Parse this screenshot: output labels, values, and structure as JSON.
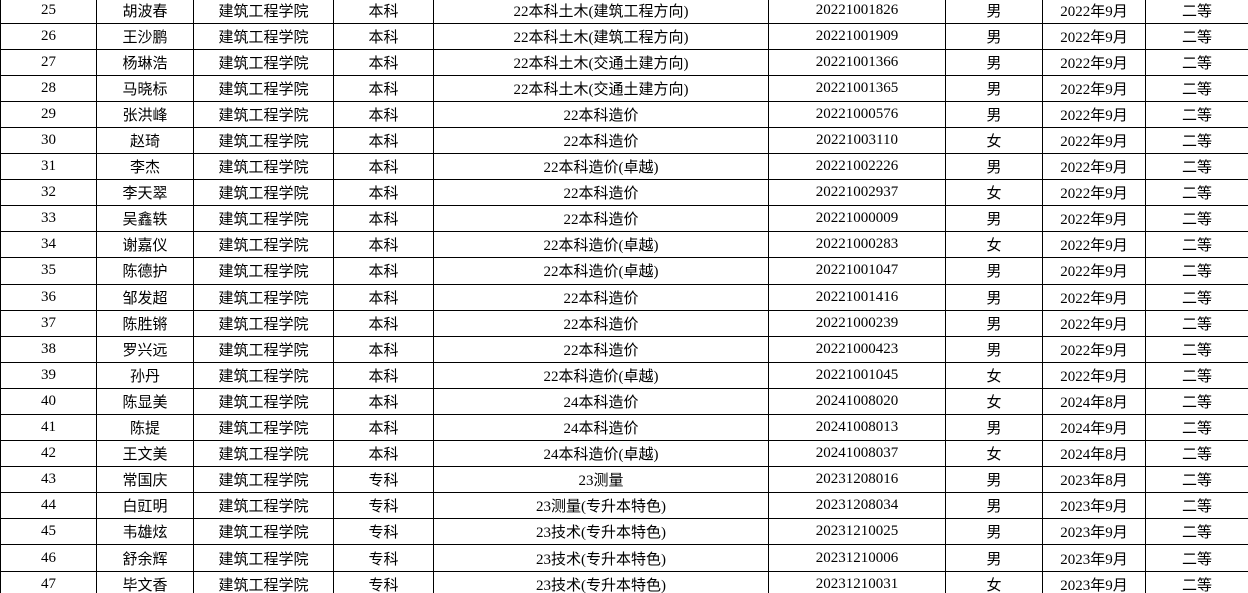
{
  "colors": {
    "border": "#000000",
    "background": "#ffffff",
    "text": "#000000"
  },
  "table": {
    "rows": [
      {
        "no": "25",
        "name": "胡波春",
        "college": "建筑工程学院",
        "level": "本科",
        "class": "22本科土木(建筑工程方向)",
        "student_id": "20221001826",
        "gender": "男",
        "enroll_date": "2022年9月",
        "award_level": "二等"
      },
      {
        "no": "26",
        "name": "王沙鹏",
        "college": "建筑工程学院",
        "level": "本科",
        "class": "22本科土木(建筑工程方向)",
        "student_id": "20221001909",
        "gender": "男",
        "enroll_date": "2022年9月",
        "award_level": "二等"
      },
      {
        "no": "27",
        "name": "杨琳浩",
        "college": "建筑工程学院",
        "level": "本科",
        "class": "22本科土木(交通土建方向)",
        "student_id": "20221001366",
        "gender": "男",
        "enroll_date": "2022年9月",
        "award_level": "二等"
      },
      {
        "no": "28",
        "name": "马晓标",
        "college": "建筑工程学院",
        "level": "本科",
        "class": "22本科土木(交通土建方向)",
        "student_id": "20221001365",
        "gender": "男",
        "enroll_date": "2022年9月",
        "award_level": "二等"
      },
      {
        "no": "29",
        "name": "张洪峰",
        "college": "建筑工程学院",
        "level": "本科",
        "class": "22本科造价",
        "student_id": "20221000576",
        "gender": "男",
        "enroll_date": "2022年9月",
        "award_level": "二等"
      },
      {
        "no": "30",
        "name": "赵琦",
        "college": "建筑工程学院",
        "level": "本科",
        "class": "22本科造价",
        "student_id": "20221003110",
        "gender": "女",
        "enroll_date": "2022年9月",
        "award_level": "二等"
      },
      {
        "no": "31",
        "name": "李杰",
        "college": "建筑工程学院",
        "level": "本科",
        "class": "22本科造价(卓越)",
        "student_id": "20221002226",
        "gender": "男",
        "enroll_date": "2022年9月",
        "award_level": "二等"
      },
      {
        "no": "32",
        "name": "李天翠",
        "college": "建筑工程学院",
        "level": "本科",
        "class": "22本科造价",
        "student_id": "20221002937",
        "gender": "女",
        "enroll_date": "2022年9月",
        "award_level": "二等"
      },
      {
        "no": "33",
        "name": "吴鑫轶",
        "college": "建筑工程学院",
        "level": "本科",
        "class": "22本科造价",
        "student_id": "20221000009",
        "gender": "男",
        "enroll_date": "2022年9月",
        "award_level": "二等"
      },
      {
        "no": "34",
        "name": "谢嘉仪",
        "college": "建筑工程学院",
        "level": "本科",
        "class": "22本科造价(卓越)",
        "student_id": "20221000283",
        "gender": "女",
        "enroll_date": "2022年9月",
        "award_level": "二等"
      },
      {
        "no": "35",
        "name": "陈德护",
        "college": "建筑工程学院",
        "level": "本科",
        "class": "22本科造价(卓越)",
        "student_id": "20221001047",
        "gender": "男",
        "enroll_date": "2022年9月",
        "award_level": "二等"
      },
      {
        "no": "36",
        "name": "邹发超",
        "college": "建筑工程学院",
        "level": "本科",
        "class": "22本科造价",
        "student_id": "20221001416",
        "gender": "男",
        "enroll_date": "2022年9月",
        "award_level": "二等"
      },
      {
        "no": "37",
        "name": "陈胜锵",
        "college": "建筑工程学院",
        "level": "本科",
        "class": "22本科造价",
        "student_id": "20221000239",
        "gender": "男",
        "enroll_date": "2022年9月",
        "award_level": "二等"
      },
      {
        "no": "38",
        "name": "罗兴远",
        "college": "建筑工程学院",
        "level": "本科",
        "class": "22本科造价",
        "student_id": "20221000423",
        "gender": "男",
        "enroll_date": "2022年9月",
        "award_level": "二等"
      },
      {
        "no": "39",
        "name": "孙丹",
        "college": "建筑工程学院",
        "level": "本科",
        "class": "22本科造价(卓越)",
        "student_id": "20221001045",
        "gender": "女",
        "enroll_date": "2022年9月",
        "award_level": "二等"
      },
      {
        "no": "40",
        "name": "陈显美",
        "college": "建筑工程学院",
        "level": "本科",
        "class": "24本科造价",
        "student_id": "20241008020",
        "gender": "女",
        "enroll_date": "2024年8月",
        "award_level": "二等"
      },
      {
        "no": "41",
        "name": "陈提",
        "college": "建筑工程学院",
        "level": "本科",
        "class": "24本科造价",
        "student_id": "20241008013",
        "gender": "男",
        "enroll_date": "2024年9月",
        "award_level": "二等"
      },
      {
        "no": "42",
        "name": "王文美",
        "college": "建筑工程学院",
        "level": "本科",
        "class": "24本科造价(卓越)",
        "student_id": "20241008037",
        "gender": "女",
        "enroll_date": "2024年8月",
        "award_level": "二等"
      },
      {
        "no": "43",
        "name": "常国庆",
        "college": "建筑工程学院",
        "level": "专科",
        "class": "23测量",
        "student_id": "20231208016",
        "gender": "男",
        "enroll_date": "2023年8月",
        "award_level": "二等"
      },
      {
        "no": "44",
        "name": "白豇明",
        "college": "建筑工程学院",
        "level": "专科",
        "class": "23测量(专升本特色)",
        "student_id": "20231208034",
        "gender": "男",
        "enroll_date": "2023年9月",
        "award_level": "二等"
      },
      {
        "no": "45",
        "name": "韦雄炫",
        "college": "建筑工程学院",
        "level": "专科",
        "class": "23技术(专升本特色)",
        "student_id": "20231210025",
        "gender": "男",
        "enroll_date": "2023年9月",
        "award_level": "二等"
      },
      {
        "no": "46",
        "name": "舒余辉",
        "college": "建筑工程学院",
        "level": "专科",
        "class": "23技术(专升本特色)",
        "student_id": "20231210006",
        "gender": "男",
        "enroll_date": "2023年9月",
        "award_level": "二等"
      },
      {
        "no": "47",
        "name": "毕文香",
        "college": "建筑工程学院",
        "level": "专科",
        "class": "23技术(专升本特色)",
        "student_id": "20231210031",
        "gender": "女",
        "enroll_date": "2023年9月",
        "award_level": "二等"
      }
    ]
  }
}
